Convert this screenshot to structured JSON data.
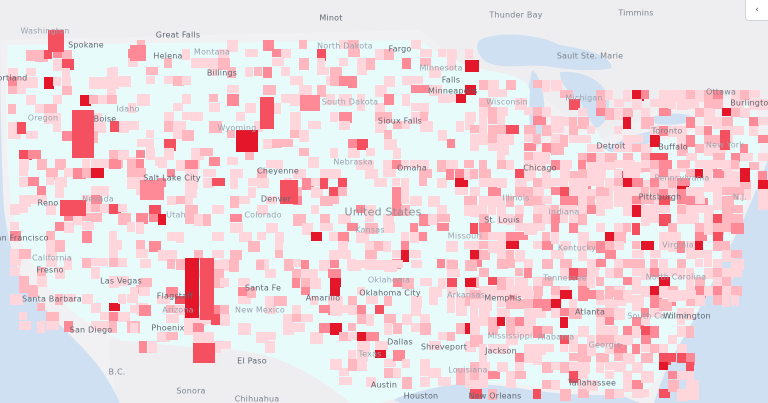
{
  "colors": {
    "water": "#cfe0f2",
    "land_outside": "#f1f1f3",
    "land_base": "#e8fbfb",
    "scale": [
      "#ffd6dc",
      "#ffb7c0",
      "#ff8a97",
      "#f4505f",
      "#e3162a"
    ]
  },
  "controls": {
    "corner_button_icon": "chevron-left-icon",
    "corner_button_glyph": "‹"
  },
  "labels": [
    {
      "name": "label-minot",
      "text": "Minot",
      "type": "city"
    },
    {
      "name": "label-thunder-bay",
      "text": "Thunder Bay",
      "type": "foreign"
    },
    {
      "name": "label-timmins",
      "text": "Timmins",
      "type": "foreign"
    },
    {
      "name": "label-washington",
      "text": "Washington",
      "type": "state"
    },
    {
      "name": "label-spokane",
      "text": "Spokane",
      "type": "city"
    },
    {
      "name": "label-great-falls",
      "text": "Great Falls",
      "type": "city"
    },
    {
      "name": "label-north-dakota",
      "text": "North Dakota",
      "type": "state"
    },
    {
      "name": "label-montana",
      "text": "Montana",
      "type": "state"
    },
    {
      "name": "label-helena",
      "text": "Helena",
      "type": "city"
    },
    {
      "name": "label-fargo",
      "text": "Fargo",
      "type": "city"
    },
    {
      "name": "label-sault-ste-marie",
      "text": "Sault Ste. Marie",
      "type": "foreign"
    },
    {
      "name": "label-minnesota",
      "text": "Minnesota",
      "type": "state"
    },
    {
      "name": "label-billings",
      "text": "Billings",
      "type": "city"
    },
    {
      "name": "label-portland",
      "text": "Portland",
      "type": "city"
    },
    {
      "name": "label-minneapolis",
      "text": "Minneapolis",
      "type": "city"
    },
    {
      "name": "label-michigan",
      "text": "Michigan",
      "type": "state"
    },
    {
      "name": "label-ottawa",
      "text": "Ottawa",
      "type": "foreign"
    },
    {
      "name": "label-south-dakota",
      "text": "South Dakota",
      "type": "state"
    },
    {
      "name": "label-wisconsin",
      "text": "Wisconsin",
      "type": "state"
    },
    {
      "name": "label-idaho",
      "text": "Idaho",
      "type": "state"
    },
    {
      "name": "label-oregon",
      "text": "Oregon",
      "type": "state"
    },
    {
      "name": "label-boise",
      "text": "Boise",
      "type": "city"
    },
    {
      "name": "label-sioux-falls",
      "text": "Sioux Falls",
      "type": "city"
    },
    {
      "name": "label-wyoming",
      "text": "Wyoming",
      "type": "state"
    },
    {
      "name": "label-toronto",
      "text": "Toronto",
      "type": "foreign"
    },
    {
      "name": "label-detroit",
      "text": "Detroit",
      "type": "city"
    },
    {
      "name": "label-buffalo",
      "text": "Buffalo",
      "type": "city"
    },
    {
      "name": "label-new-york",
      "text": "New York",
      "type": "state"
    },
    {
      "name": "label-nebraska",
      "text": "Nebraska",
      "type": "state"
    },
    {
      "name": "label-chicago",
      "text": "Chicago",
      "type": "city"
    },
    {
      "name": "label-omaha",
      "text": "Omaha",
      "type": "city"
    },
    {
      "name": "label-cheyenne",
      "text": "Cheyenne",
      "type": "city"
    },
    {
      "name": "label-salt-lake-city",
      "text": "Salt Lake City",
      "type": "city"
    },
    {
      "name": "label-pennsylvania",
      "text": "Pennsylvania",
      "type": "state"
    },
    {
      "name": "label-reno",
      "text": "Reno",
      "type": "city"
    },
    {
      "name": "label-nevada",
      "text": "Nevada",
      "type": "state"
    },
    {
      "name": "label-denver",
      "text": "Denver",
      "type": "city"
    },
    {
      "name": "label-pittsburgh",
      "text": "Pittsburgh",
      "type": "city"
    },
    {
      "name": "label-illinois",
      "text": "Illinois",
      "type": "state"
    },
    {
      "name": "label-utah",
      "text": "Utah",
      "type": "state"
    },
    {
      "name": "label-united-states",
      "text": "United States",
      "type": "country"
    },
    {
      "name": "label-colorado",
      "text": "Colorado",
      "type": "state"
    },
    {
      "name": "label-st-louis",
      "text": "St. Louis",
      "type": "city"
    },
    {
      "name": "label-indiana",
      "text": "Indiana",
      "type": "state"
    },
    {
      "name": "label-nj",
      "text": "N.J.",
      "type": "state"
    },
    {
      "name": "label-san-francisco",
      "text": "San Francisco",
      "type": "city"
    },
    {
      "name": "label-kansas",
      "text": "Kansas",
      "type": "state"
    },
    {
      "name": "label-missouri",
      "text": "Missouri",
      "type": "state"
    },
    {
      "name": "label-virginia",
      "text": "Virginia",
      "type": "state"
    },
    {
      "name": "label-kentucky",
      "text": "Kentucky",
      "type": "state"
    },
    {
      "name": "label-california",
      "text": "California",
      "type": "state"
    },
    {
      "name": "label-fresno",
      "text": "Fresno",
      "type": "city"
    },
    {
      "name": "label-las-vegas",
      "text": "Las Vegas",
      "type": "city"
    },
    {
      "name": "label-santa-fe",
      "text": "Santa Fe",
      "type": "city"
    },
    {
      "name": "label-tennessee",
      "text": "Tennessee",
      "type": "state"
    },
    {
      "name": "label-north-carolina",
      "text": "North Carolina",
      "type": "state"
    },
    {
      "name": "label-oklahoma",
      "text": "Oklahoma",
      "type": "state"
    },
    {
      "name": "label-oklahoma-city",
      "text": "Oklahoma City",
      "type": "city"
    },
    {
      "name": "label-arkansas",
      "text": "Arkansas",
      "type": "state"
    },
    {
      "name": "label-memphis",
      "text": "Memphis",
      "type": "city"
    },
    {
      "name": "label-flagstaff",
      "text": "Flagstaff",
      "type": "city"
    },
    {
      "name": "label-amarillo",
      "text": "Amarillo",
      "type": "city"
    },
    {
      "name": "label-santa-barbara",
      "text": "Santa Barbara",
      "type": "city"
    },
    {
      "name": "label-new-mexico",
      "text": "New Mexico",
      "type": "state"
    },
    {
      "name": "label-arizona",
      "text": "Arizona",
      "type": "state"
    },
    {
      "name": "label-south-carolina",
      "text": "South Carolina",
      "type": "state"
    },
    {
      "name": "label-atlanta",
      "text": "Atlanta",
      "type": "city"
    },
    {
      "name": "label-wilmington",
      "text": "Wilmington",
      "type": "city"
    },
    {
      "name": "label-phoenix",
      "text": "Phoenix",
      "type": "city"
    },
    {
      "name": "label-san-diego",
      "text": "San Diego",
      "type": "city"
    },
    {
      "name": "label-mississippi",
      "text": "Mississippi",
      "type": "state"
    },
    {
      "name": "label-alabama",
      "text": "Alabama",
      "type": "state"
    },
    {
      "name": "label-dallas",
      "text": "Dallas",
      "type": "city"
    },
    {
      "name": "label-shreveport",
      "text": "Shreveport",
      "type": "city"
    },
    {
      "name": "label-georgia",
      "text": "Georgia",
      "type": "state"
    },
    {
      "name": "label-jackson",
      "text": "Jackson",
      "type": "city"
    },
    {
      "name": "label-texas",
      "text": "Texas",
      "type": "state"
    },
    {
      "name": "label-el-paso",
      "text": "El Paso",
      "type": "city"
    },
    {
      "name": "label-louisiana",
      "text": "Louisiana",
      "type": "state"
    },
    {
      "name": "label-bc",
      "text": "B.C.",
      "type": "foreign"
    },
    {
      "name": "label-austin",
      "text": "Austin",
      "type": "city"
    },
    {
      "name": "label-tallahassee",
      "text": "Tallahassee",
      "type": "city"
    },
    {
      "name": "label-sonora",
      "text": "Sonora",
      "type": "foreign"
    },
    {
      "name": "label-chihuahua",
      "text": "Chihuahua",
      "type": "foreign"
    },
    {
      "name": "label-houston",
      "text": "Houston",
      "type": "city"
    },
    {
      "name": "label-new-orleans",
      "text": "New Orleans",
      "type": "city"
    },
    {
      "name": "label-falls",
      "text": "Falls",
      "type": "city"
    },
    {
      "name": "label-burlington",
      "text": "Burlington",
      "type": "city"
    }
  ]
}
